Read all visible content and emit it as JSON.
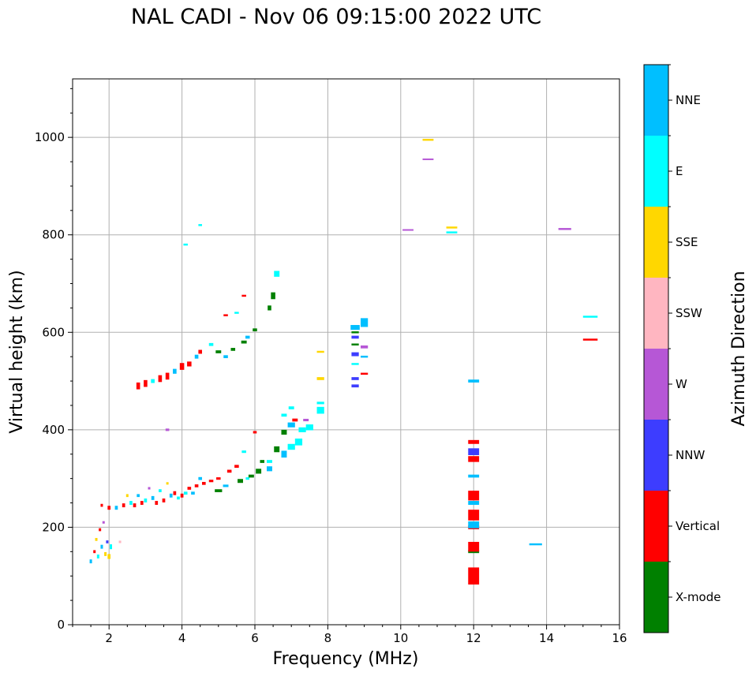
{
  "chart_data": {
    "type": "scatter",
    "title": "NAL CADI - Nov 06 09:15:00 2022 UTC",
    "xlabel": "Frequency (MHz)",
    "ylabel": "Virtual height (km)",
    "xlim": [
      1,
      16
    ],
    "ylim": [
      0,
      1120
    ],
    "xticks": [
      2,
      4,
      6,
      8,
      10,
      12,
      14,
      16
    ],
    "yticks": [
      0,
      200,
      400,
      600,
      800,
      1000
    ],
    "grid": true,
    "colorbar": {
      "title": "Azimuth Direction",
      "categories": [
        {
          "name": "X-mode",
          "color": "#008000"
        },
        {
          "name": "Vertical",
          "color": "#ff0000"
        },
        {
          "name": "NNW",
          "color": "#3d3dff"
        },
        {
          "name": "W",
          "color": "#b657d6"
        },
        {
          "name": "SSW",
          "color": "#ffb6c1"
        },
        {
          "name": "SSE",
          "color": "#ffd700"
        },
        {
          "name": "E",
          "color": "#00ffff"
        },
        {
          "name": "NNE",
          "color": "#00bfff"
        }
      ]
    },
    "points": [
      {
        "f": 1.5,
        "h": 130,
        "dir": "NNE",
        "w": 0.06,
        "d": 8
      },
      {
        "f": 1.6,
        "h": 150,
        "dir": "Vertical",
        "w": 0.06,
        "d": 6
      },
      {
        "f": 1.65,
        "h": 175,
        "dir": "SSE",
        "w": 0.06,
        "d": 6
      },
      {
        "f": 1.7,
        "h": 140,
        "dir": "E",
        "w": 0.06,
        "d": 8
      },
      {
        "f": 1.75,
        "h": 195,
        "dir": "Vertical",
        "w": 0.05,
        "d": 6
      },
      {
        "f": 1.8,
        "h": 160,
        "dir": "NNE",
        "w": 0.06,
        "d": 8
      },
      {
        "f": 1.85,
        "h": 210,
        "dir": "W",
        "w": 0.05,
        "d": 5
      },
      {
        "f": 1.9,
        "h": 145,
        "dir": "SSE",
        "w": 0.06,
        "d": 8
      },
      {
        "f": 1.95,
        "h": 170,
        "dir": "NNW",
        "w": 0.06,
        "d": 6
      },
      {
        "f": 2.0,
        "h": 140,
        "dir": "SSE",
        "w": 0.08,
        "d": 10
      },
      {
        "f": 2.05,
        "h": 160,
        "dir": "E",
        "w": 0.06,
        "d": 10
      },
      {
        "f": 2.3,
        "h": 170,
        "dir": "SSW",
        "w": 0.06,
        "d": 5
      },
      {
        "f": 1.8,
        "h": 245,
        "dir": "Vertical",
        "w": 0.05,
        "d": 6
      },
      {
        "f": 2.0,
        "h": 240,
        "dir": "Vertical",
        "w": 0.08,
        "d": 8
      },
      {
        "f": 2.2,
        "h": 240,
        "dir": "NNE",
        "w": 0.08,
        "d": 8
      },
      {
        "f": 2.4,
        "h": 245,
        "dir": "Vertical",
        "w": 0.08,
        "d": 8
      },
      {
        "f": 2.5,
        "h": 265,
        "dir": "SSE",
        "w": 0.06,
        "d": 6
      },
      {
        "f": 2.6,
        "h": 250,
        "dir": "E",
        "w": 0.08,
        "d": 8
      },
      {
        "f": 2.7,
        "h": 245,
        "dir": "Vertical",
        "w": 0.08,
        "d": 8
      },
      {
        "f": 2.8,
        "h": 265,
        "dir": "NNE",
        "w": 0.08,
        "d": 6
      },
      {
        "f": 2.9,
        "h": 250,
        "dir": "Vertical",
        "w": 0.08,
        "d": 8
      },
      {
        "f": 3.0,
        "h": 255,
        "dir": "E",
        "w": 0.08,
        "d": 8
      },
      {
        "f": 3.1,
        "h": 280,
        "dir": "W",
        "w": 0.06,
        "d": 5
      },
      {
        "f": 3.2,
        "h": 260,
        "dir": "NNE",
        "w": 0.08,
        "d": 8
      },
      {
        "f": 3.3,
        "h": 250,
        "dir": "Vertical",
        "w": 0.08,
        "d": 8
      },
      {
        "f": 3.4,
        "h": 275,
        "dir": "E",
        "w": 0.08,
        "d": 6
      },
      {
        "f": 3.5,
        "h": 255,
        "dir": "Vertical",
        "w": 0.08,
        "d": 8
      },
      {
        "f": 3.6,
        "h": 290,
        "dir": "SSE",
        "w": 0.06,
        "d": 5
      },
      {
        "f": 3.7,
        "h": 265,
        "dir": "NNE",
        "w": 0.08,
        "d": 8
      },
      {
        "f": 3.8,
        "h": 270,
        "dir": "Vertical",
        "w": 0.08,
        "d": 8
      },
      {
        "f": 3.9,
        "h": 260,
        "dir": "E",
        "w": 0.08,
        "d": 6
      },
      {
        "f": 4.0,
        "h": 265,
        "dir": "Vertical",
        "w": 0.08,
        "d": 8
      },
      {
        "f": 4.1,
        "h": 270,
        "dir": "E",
        "w": 0.1,
        "d": 6
      },
      {
        "f": 4.2,
        "h": 280,
        "dir": "Vertical",
        "w": 0.1,
        "d": 6
      },
      {
        "f": 4.3,
        "h": 270,
        "dir": "NNE",
        "w": 0.1,
        "d": 6
      },
      {
        "f": 4.4,
        "h": 285,
        "dir": "Vertical",
        "w": 0.1,
        "d": 6
      },
      {
        "f": 4.5,
        "h": 300,
        "dir": "NNE",
        "w": 0.1,
        "d": 6
      },
      {
        "f": 4.6,
        "h": 290,
        "dir": "Vertical",
        "w": 0.1,
        "d": 6
      },
      {
        "f": 4.8,
        "h": 295,
        "dir": "Vertical",
        "w": 0.12,
        "d": 5
      },
      {
        "f": 5.0,
        "h": 275,
        "dir": "X-mode",
        "w": 0.2,
        "d": 6
      },
      {
        "f": 5.0,
        "h": 300,
        "dir": "Vertical",
        "w": 0.12,
        "d": 5
      },
      {
        "f": 5.2,
        "h": 285,
        "dir": "NNE",
        "w": 0.15,
        "d": 5
      },
      {
        "f": 5.3,
        "h": 315,
        "dir": "Vertical",
        "w": 0.12,
        "d": 6
      },
      {
        "f": 5.5,
        "h": 325,
        "dir": "Vertical",
        "w": 0.12,
        "d": 6
      },
      {
        "f": 5.6,
        "h": 295,
        "dir": "X-mode",
        "w": 0.15,
        "d": 8
      },
      {
        "f": 5.7,
        "h": 355,
        "dir": "E",
        "w": 0.12,
        "d": 5
      },
      {
        "f": 5.8,
        "h": 300,
        "dir": "E",
        "w": 0.1,
        "d": 5
      },
      {
        "f": 5.9,
        "h": 305,
        "dir": "X-mode",
        "w": 0.15,
        "d": 6
      },
      {
        "f": 6.0,
        "h": 395,
        "dir": "Vertical",
        "w": 0.1,
        "d": 5
      },
      {
        "f": 6.1,
        "h": 315,
        "dir": "X-mode",
        "w": 0.15,
        "d": 10
      },
      {
        "f": 6.2,
        "h": 335,
        "dir": "X-mode",
        "w": 0.12,
        "d": 6
      },
      {
        "f": 6.4,
        "h": 320,
        "dir": "NNE",
        "w": 0.15,
        "d": 10
      },
      {
        "f": 6.4,
        "h": 335,
        "dir": "E",
        "w": 0.15,
        "d": 6
      },
      {
        "f": 6.6,
        "h": 360,
        "dir": "X-mode",
        "w": 0.15,
        "d": 12
      },
      {
        "f": 6.8,
        "h": 350,
        "dir": "NNE",
        "w": 0.15,
        "d": 14
      },
      {
        "f": 6.8,
        "h": 395,
        "dir": "X-mode",
        "w": 0.15,
        "d": 10
      },
      {
        "f": 6.8,
        "h": 430,
        "dir": "E",
        "w": 0.15,
        "d": 6
      },
      {
        "f": 7.0,
        "h": 365,
        "dir": "E",
        "w": 0.2,
        "d": 12
      },
      {
        "f": 7.0,
        "h": 410,
        "dir": "NNE",
        "w": 0.2,
        "d": 10
      },
      {
        "f": 7.0,
        "h": 445,
        "dir": "E",
        "w": 0.15,
        "d": 6
      },
      {
        "f": 7.1,
        "h": 420,
        "dir": "Vertical",
        "w": 0.15,
        "d": 6
      },
      {
        "f": 7.2,
        "h": 375,
        "dir": "E",
        "w": 0.2,
        "d": 14
      },
      {
        "f": 7.3,
        "h": 400,
        "dir": "E",
        "w": 0.2,
        "d": 10
      },
      {
        "f": 7.4,
        "h": 420,
        "dir": "W",
        "w": 0.15,
        "d": 5
      },
      {
        "f": 7.5,
        "h": 405,
        "dir": "E",
        "w": 0.2,
        "d": 12
      },
      {
        "f": 7.8,
        "h": 440,
        "dir": "E",
        "w": 0.2,
        "d": 14
      },
      {
        "f": 7.8,
        "h": 455,
        "dir": "E",
        "w": 0.2,
        "d": 5
      },
      {
        "f": 7.8,
        "h": 505,
        "dir": "SSE",
        "w": 0.2,
        "d": 6
      },
      {
        "f": 7.8,
        "h": 560,
        "dir": "SSE",
        "w": 0.2,
        "d": 4
      },
      {
        "f": 2.8,
        "h": 490,
        "dir": "Vertical",
        "w": 0.1,
        "d": 14
      },
      {
        "f": 3.0,
        "h": 495,
        "dir": "Vertical",
        "w": 0.1,
        "d": 14
      },
      {
        "f": 3.2,
        "h": 500,
        "dir": "E",
        "w": 0.1,
        "d": 8
      },
      {
        "f": 3.4,
        "h": 505,
        "dir": "Vertical",
        "w": 0.1,
        "d": 14
      },
      {
        "f": 3.6,
        "h": 510,
        "dir": "Vertical",
        "w": 0.1,
        "d": 14
      },
      {
        "f": 3.8,
        "h": 520,
        "dir": "NNE",
        "w": 0.1,
        "d": 10
      },
      {
        "f": 4.0,
        "h": 530,
        "dir": "Vertical",
        "w": 0.12,
        "d": 14
      },
      {
        "f": 4.2,
        "h": 535,
        "dir": "Vertical",
        "w": 0.12,
        "d": 10
      },
      {
        "f": 4.4,
        "h": 550,
        "dir": "NNE",
        "w": 0.1,
        "d": 8
      },
      {
        "f": 4.5,
        "h": 560,
        "dir": "Vertical",
        "w": 0.1,
        "d": 8
      },
      {
        "f": 4.8,
        "h": 575,
        "dir": "E",
        "w": 0.12,
        "d": 6
      },
      {
        "f": 5.0,
        "h": 560,
        "dir": "X-mode",
        "w": 0.15,
        "d": 6
      },
      {
        "f": 5.2,
        "h": 550,
        "dir": "NNE",
        "w": 0.12,
        "d": 6
      },
      {
        "f": 5.4,
        "h": 565,
        "dir": "X-mode",
        "w": 0.12,
        "d": 6
      },
      {
        "f": 5.7,
        "h": 580,
        "dir": "X-mode",
        "w": 0.15,
        "d": 6
      },
      {
        "f": 5.8,
        "h": 590,
        "dir": "NNE",
        "w": 0.12,
        "d": 6
      },
      {
        "f": 6.0,
        "h": 605,
        "dir": "X-mode",
        "w": 0.12,
        "d": 6
      },
      {
        "f": 6.4,
        "h": 650,
        "dir": "X-mode",
        "w": 0.1,
        "d": 10
      },
      {
        "f": 6.5,
        "h": 675,
        "dir": "X-mode",
        "w": 0.12,
        "d": 14
      },
      {
        "f": 6.6,
        "h": 720,
        "dir": "E",
        "w": 0.15,
        "d": 12
      },
      {
        "f": 5.7,
        "h": 675,
        "dir": "Vertical",
        "w": 0.12,
        "d": 4
      },
      {
        "f": 5.2,
        "h": 635,
        "dir": "Vertical",
        "w": 0.12,
        "d": 4
      },
      {
        "f": 5.5,
        "h": 640,
        "dir": "E",
        "w": 0.12,
        "d": 4
      },
      {
        "f": 4.1,
        "h": 780,
        "dir": "E",
        "w": 0.12,
        "d": 4
      },
      {
        "f": 4.5,
        "h": 820,
        "dir": "E",
        "w": 0.1,
        "d": 4
      },
      {
        "f": 3.6,
        "h": 400,
        "dir": "W",
        "w": 0.1,
        "d": 5
      },
      {
        "f": 8.75,
        "h": 490,
        "dir": "NNW",
        "w": 0.2,
        "d": 6
      },
      {
        "f": 8.75,
        "h": 505,
        "dir": "NNW",
        "w": 0.2,
        "d": 6
      },
      {
        "f": 8.75,
        "h": 535,
        "dir": "E",
        "w": 0.2,
        "d": 4
      },
      {
        "f": 8.75,
        "h": 555,
        "dir": "NNW",
        "w": 0.2,
        "d": 8
      },
      {
        "f": 8.75,
        "h": 575,
        "dir": "X-mode",
        "w": 0.2,
        "d": 4
      },
      {
        "f": 8.75,
        "h": 590,
        "dir": "NNW",
        "w": 0.2,
        "d": 6
      },
      {
        "f": 8.75,
        "h": 600,
        "dir": "X-mode",
        "w": 0.2,
        "d": 4
      },
      {
        "f": 8.75,
        "h": 610,
        "dir": "NNE",
        "w": 0.25,
        "d": 10
      },
      {
        "f": 9.0,
        "h": 515,
        "dir": "Vertical",
        "w": 0.2,
        "d": 4
      },
      {
        "f": 9.0,
        "h": 550,
        "dir": "NNE",
        "w": 0.2,
        "d": 4
      },
      {
        "f": 9.0,
        "h": 570,
        "dir": "W",
        "w": 0.2,
        "d": 6
      },
      {
        "f": 9.0,
        "h": 620,
        "dir": "NNE",
        "w": 0.2,
        "d": 18
      },
      {
        "f": 10.2,
        "h": 810,
        "dir": "W",
        "w": 0.3,
        "d": 3
      },
      {
        "f": 10.75,
        "h": 995,
        "dir": "SSE",
        "w": 0.3,
        "d": 4
      },
      {
        "f": 10.75,
        "h": 955,
        "dir": "W",
        "w": 0.3,
        "d": 3
      },
      {
        "f": 11.4,
        "h": 815,
        "dir": "SSE",
        "w": 0.3,
        "d": 4
      },
      {
        "f": 11.4,
        "h": 805,
        "dir": "E",
        "w": 0.3,
        "d": 4
      },
      {
        "f": 12.0,
        "h": 100,
        "dir": "Vertical",
        "w": 0.3,
        "d": 35
      },
      {
        "f": 12.0,
        "h": 150,
        "dir": "X-mode",
        "w": 0.3,
        "d": 6
      },
      {
        "f": 12.0,
        "h": 160,
        "dir": "Vertical",
        "w": 0.3,
        "d": 20
      },
      {
        "f": 12.0,
        "h": 200,
        "dir": "Vertical",
        "w": 0.3,
        "d": 8
      },
      {
        "f": 12.0,
        "h": 205,
        "dir": "NNE",
        "w": 0.3,
        "d": 14
      },
      {
        "f": 12.0,
        "h": 225,
        "dir": "Vertical",
        "w": 0.3,
        "d": 22
      },
      {
        "f": 12.0,
        "h": 250,
        "dir": "NNE",
        "w": 0.3,
        "d": 8
      },
      {
        "f": 12.0,
        "h": 265,
        "dir": "Vertical",
        "w": 0.3,
        "d": 20
      },
      {
        "f": 12.0,
        "h": 305,
        "dir": "NNE",
        "w": 0.3,
        "d": 6
      },
      {
        "f": 12.0,
        "h": 340,
        "dir": "Vertical",
        "w": 0.3,
        "d": 12
      },
      {
        "f": 12.0,
        "h": 355,
        "dir": "NNW",
        "w": 0.3,
        "d": 14
      },
      {
        "f": 12.0,
        "h": 375,
        "dir": "Vertical",
        "w": 0.3,
        "d": 8
      },
      {
        "f": 12.0,
        "h": 500,
        "dir": "NNE",
        "w": 0.3,
        "d": 6
      },
      {
        "f": 13.7,
        "h": 165,
        "dir": "NNE",
        "w": 0.35,
        "d": 4
      },
      {
        "f": 14.5,
        "h": 812,
        "dir": "W",
        "w": 0.35,
        "d": 4
      },
      {
        "f": 15.2,
        "h": 632,
        "dir": "E",
        "w": 0.4,
        "d": 4
      },
      {
        "f": 15.2,
        "h": 585,
        "dir": "Vertical",
        "w": 0.4,
        "d": 4
      }
    ]
  }
}
